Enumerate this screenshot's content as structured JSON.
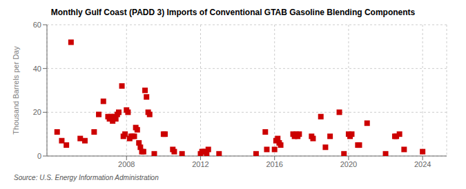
{
  "chart_data": {
    "type": "scatter",
    "title": "Monthly Gulf Coast (PADD 3) Imports of Conventional GTAB Gasoline Blending Components",
    "ylabel": "Thousand Barrels per Day",
    "annotations": [
      "Source: U.S. Energy Information Administration"
    ],
    "color": "#cc0000",
    "marker": "square",
    "grid": true,
    "xlim": [
      2003.7,
      2025.3
    ],
    "xticks": [
      2008,
      2012,
      2016,
      2020,
      2024
    ],
    "ylim": [
      0,
      60
    ],
    "yticks": [
      0,
      20,
      40,
      60
    ],
    "x": [
      2004.25,
      2004.5,
      2004.75,
      2005.0,
      2005.5,
      2005.75,
      2006.25,
      2006.5,
      2006.75,
      2007.0,
      2007.08,
      2007.17,
      2007.25,
      2007.33,
      2007.42,
      2007.5,
      2007.58,
      2007.75,
      2007.83,
      2007.92,
      2008.0,
      2008.08,
      2008.17,
      2008.25,
      2008.33,
      2008.42,
      2008.5,
      2008.58,
      2008.67,
      2008.75,
      2008.83,
      2008.92,
      2009.0,
      2009.08,
      2009.17,
      2009.25,
      2009.5,
      2010.0,
      2010.08,
      2010.5,
      2010.58,
      2011.0,
      2012.0,
      2012.08,
      2012.17,
      2012.25,
      2012.33,
      2012.42,
      2013.0,
      2015.0,
      2015.5,
      2015.58,
      2016.0,
      2016.08,
      2016.17,
      2016.25,
      2016.33,
      2017.0,
      2017.08,
      2017.17,
      2017.25,
      2017.33,
      2018.0,
      2018.08,
      2018.5,
      2018.75,
      2019.0,
      2019.5,
      2019.75,
      2020.0,
      2020.08,
      2020.17,
      2020.5,
      2020.58,
      2021.0,
      2022.0,
      2022.5,
      2022.58,
      2022.75,
      2023.0,
      2024.0
    ],
    "values": [
      11,
      7,
      5,
      52,
      8,
      7,
      11,
      19,
      25,
      18,
      17,
      18,
      16,
      18,
      17,
      19,
      20,
      32,
      9,
      10,
      21,
      20,
      8,
      9,
      9,
      9,
      13,
      12,
      6,
      4,
      2,
      2,
      30,
      27,
      20,
      19,
      1,
      10,
      10,
      3,
      2,
      1,
      1,
      2,
      2,
      2,
      1,
      3,
      1,
      1,
      11,
      3,
      3,
      7,
      8,
      6,
      5,
      10,
      9,
      10,
      9,
      10,
      9,
      8,
      18,
      4,
      9,
      20,
      1,
      10,
      9,
      10,
      5,
      5,
      15,
      1,
      9,
      9,
      10,
      3,
      2
    ]
  }
}
